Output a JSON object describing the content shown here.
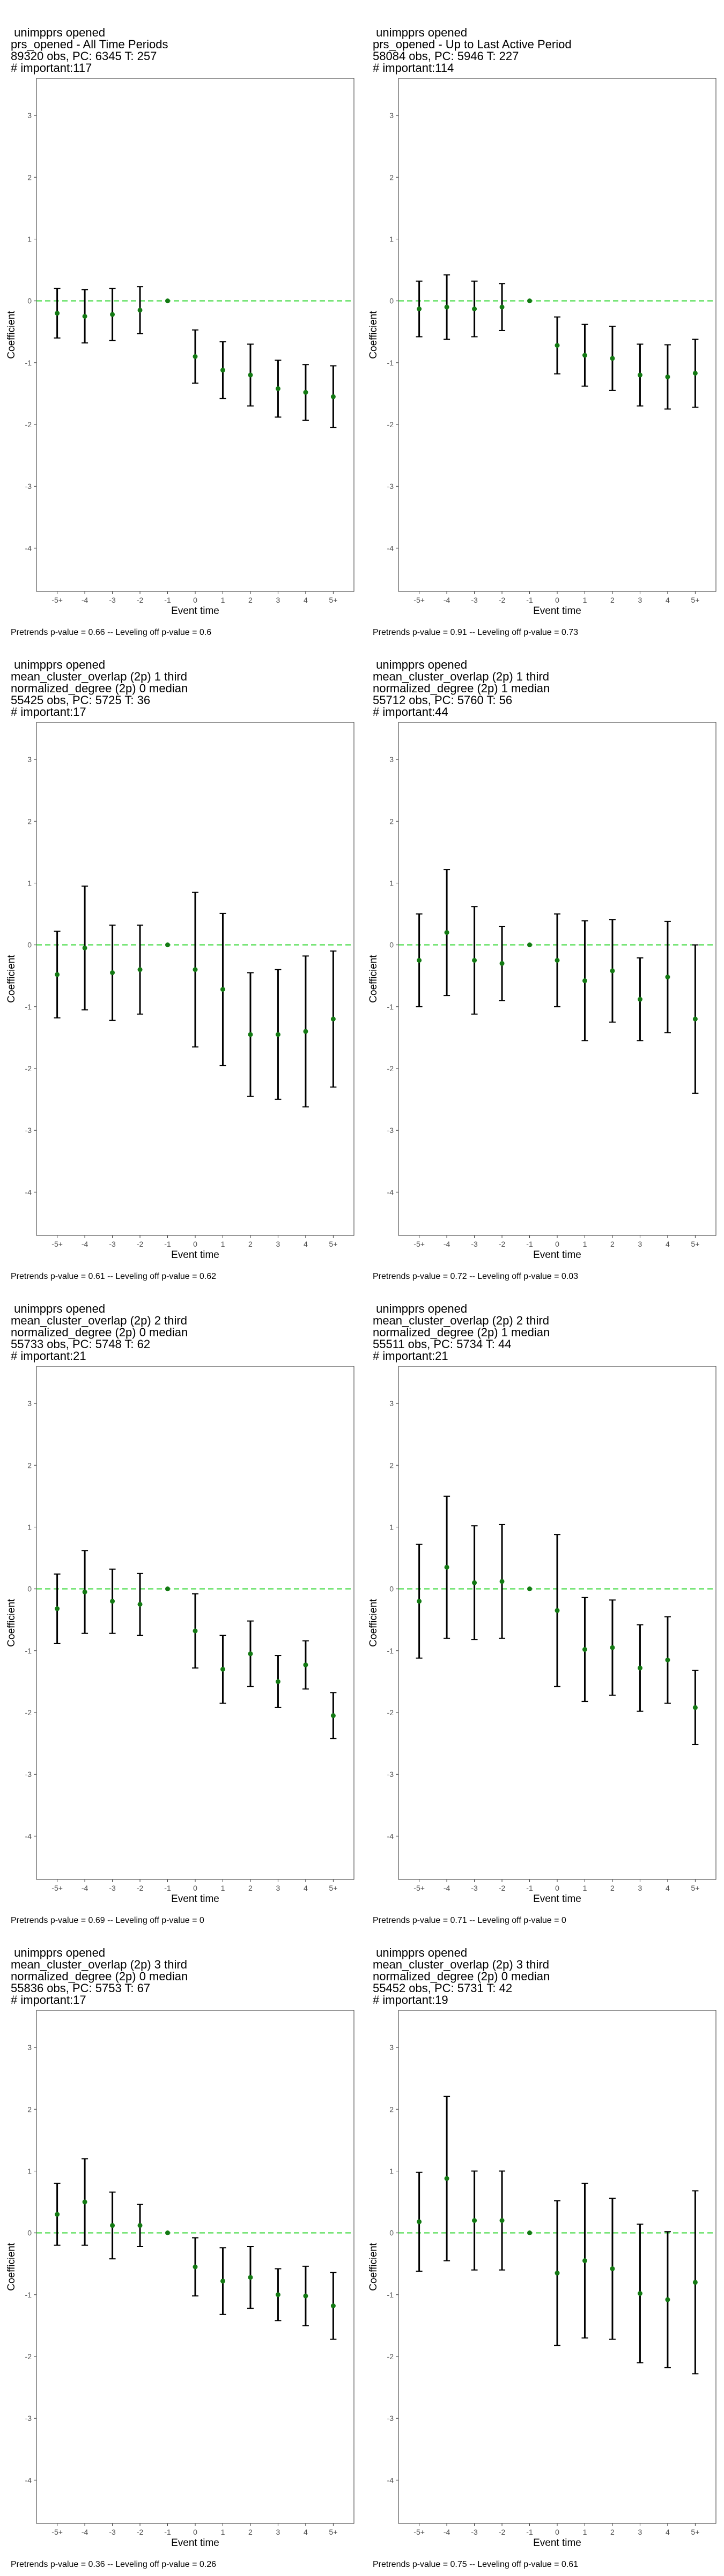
{
  "chart_data": [
    {
      "type": "scatter",
      "title_lines": [
        " unimpprs opened",
        "prs_opened - All Time Periods",
        "89320 obs, PC: 6345 T: 257",
        "# important:117"
      ],
      "caption": "Pretrends p-value = 0.66 -- Leveling off p-value = 0.6",
      "xlabel": "Event time",
      "ylabel": "Coefficient",
      "categories": [
        "-5+",
        "-4",
        "-3",
        "-2",
        "-1",
        "0",
        "1",
        "2",
        "3",
        "4",
        "5+"
      ],
      "yticks": [
        3,
        2,
        1,
        0,
        -1,
        -2,
        -3,
        -4
      ],
      "ylim": [
        -4.7,
        3.6
      ],
      "reference_line": 0,
      "colors": {
        "point": "#137a13",
        "reference": "#33d633",
        "errorbar": "#000000"
      },
      "series": [
        {
          "estimate": [
            -0.2,
            -0.25,
            -0.22,
            -0.15,
            0.0,
            -0.9,
            -1.12,
            -1.2,
            -1.42,
            -1.48,
            -1.55
          ],
          "ci_lower": [
            -0.6,
            -0.68,
            -0.64,
            -0.53,
            0.0,
            -1.33,
            -1.58,
            -1.7,
            -1.88,
            -1.93,
            -2.05
          ],
          "ci_upper": [
            0.2,
            0.18,
            0.2,
            0.23,
            0.0,
            -0.47,
            -0.66,
            -0.7,
            -0.96,
            -1.03,
            -1.05
          ]
        }
      ]
    },
    {
      "type": "scatter",
      "title_lines": [
        " unimpprs opened",
        "prs_opened - Up to Last Active Period",
        "58084 obs, PC: 5946 T: 227",
        "# important:114"
      ],
      "caption": "Pretrends p-value = 0.91 -- Leveling off p-value = 0.73",
      "xlabel": "Event time",
      "ylabel": "Coefficient",
      "categories": [
        "-5+",
        "-4",
        "-3",
        "-2",
        "-1",
        "0",
        "1",
        "2",
        "3",
        "4",
        "5+"
      ],
      "yticks": [
        3,
        2,
        1,
        0,
        -1,
        -2,
        -3,
        -4
      ],
      "ylim": [
        -4.7,
        3.6
      ],
      "reference_line": 0,
      "colors": {
        "point": "#137a13",
        "reference": "#33d633",
        "errorbar": "#000000"
      },
      "series": [
        {
          "estimate": [
            -0.13,
            -0.1,
            -0.13,
            -0.1,
            0.0,
            -0.72,
            -0.88,
            -0.93,
            -1.2,
            -1.23,
            -1.17
          ],
          "ci_lower": [
            -0.58,
            -0.62,
            -0.58,
            -0.48,
            0.0,
            -1.18,
            -1.38,
            -1.45,
            -1.7,
            -1.75,
            -1.72
          ],
          "ci_upper": [
            0.32,
            0.42,
            0.32,
            0.28,
            0.0,
            -0.26,
            -0.38,
            -0.41,
            -0.7,
            -0.71,
            -0.62
          ]
        }
      ]
    },
    {
      "type": "scatter",
      "title_lines": [
        " unimpprs opened",
        "mean_cluster_overlap (2p) 1 third",
        "normalized_degree (2p) 0 median",
        "55425 obs, PC: 5725 T: 36",
        "# important:17"
      ],
      "caption": "Pretrends p-value = 0.61 -- Leveling off p-value = 0.62",
      "xlabel": "Event time",
      "ylabel": "Coefficient",
      "categories": [
        "-5+",
        "-4",
        "-3",
        "-2",
        "-1",
        "0",
        "1",
        "2",
        "3",
        "4",
        "5+"
      ],
      "yticks": [
        3,
        2,
        1,
        0,
        -1,
        -2,
        -3,
        -4
      ],
      "ylim": [
        -4.7,
        3.6
      ],
      "reference_line": 0,
      "colors": {
        "point": "#137a13",
        "reference": "#33d633",
        "errorbar": "#000000"
      },
      "series": [
        {
          "estimate": [
            -0.48,
            -0.05,
            -0.45,
            -0.4,
            0.0,
            -0.4,
            -0.72,
            -1.45,
            -1.45,
            -1.4,
            -1.2
          ],
          "ci_lower": [
            -1.18,
            -1.05,
            -1.22,
            -1.12,
            0.0,
            -1.65,
            -1.95,
            -2.45,
            -2.5,
            -2.62,
            -2.3
          ],
          "ci_upper": [
            0.22,
            0.95,
            0.32,
            0.32,
            0.0,
            0.85,
            0.51,
            -0.45,
            -0.4,
            -0.18,
            -0.1
          ]
        }
      ]
    },
    {
      "type": "scatter",
      "title_lines": [
        " unimpprs opened",
        "mean_cluster_overlap (2p) 1 third",
        "normalized_degree (2p) 1 median",
        "55712 obs, PC: 5760 T: 56",
        "# important:44"
      ],
      "caption": "Pretrends p-value = 0.72 -- Leveling off p-value = 0.03",
      "xlabel": "Event time",
      "ylabel": "Coefficient",
      "categories": [
        "-5+",
        "-4",
        "-3",
        "-2",
        "-1",
        "0",
        "1",
        "2",
        "3",
        "4",
        "5+"
      ],
      "yticks": [
        3,
        2,
        1,
        0,
        -1,
        -2,
        -3,
        -4
      ],
      "ylim": [
        -4.7,
        3.6
      ],
      "reference_line": 0,
      "colors": {
        "point": "#137a13",
        "reference": "#33d633",
        "errorbar": "#000000"
      },
      "series": [
        {
          "estimate": [
            -0.25,
            0.2,
            -0.25,
            -0.3,
            0.0,
            -0.25,
            -0.58,
            -0.42,
            -0.88,
            -0.52,
            -1.2
          ],
          "ci_lower": [
            -1.0,
            -0.82,
            -1.12,
            -0.9,
            0.0,
            -1.0,
            -1.55,
            -1.25,
            -1.55,
            -1.42,
            -2.4
          ],
          "ci_upper": [
            0.5,
            1.22,
            0.62,
            0.3,
            0.0,
            0.5,
            0.39,
            0.41,
            -0.21,
            0.38,
            0.0
          ]
        }
      ]
    },
    {
      "type": "scatter",
      "title_lines": [
        " unimpprs opened",
        "mean_cluster_overlap (2p) 2 third",
        "normalized_degree (2p) 0 median",
        "55733 obs, PC: 5748 T: 62",
        "# important:21"
      ],
      "caption": "Pretrends p-value = 0.69 -- Leveling off p-value = 0",
      "xlabel": "Event time",
      "ylabel": "Coefficient",
      "categories": [
        "-5+",
        "-4",
        "-3",
        "-2",
        "-1",
        "0",
        "1",
        "2",
        "3",
        "4",
        "5+"
      ],
      "yticks": [
        3,
        2,
        1,
        0,
        -1,
        -2,
        -3,
        -4
      ],
      "ylim": [
        -4.7,
        3.6
      ],
      "reference_line": 0,
      "colors": {
        "point": "#137a13",
        "reference": "#33d633",
        "errorbar": "#000000"
      },
      "series": [
        {
          "estimate": [
            -0.32,
            -0.05,
            -0.2,
            -0.25,
            0.0,
            -0.68,
            -1.3,
            -1.05,
            -1.5,
            -1.23,
            -2.05
          ],
          "ci_lower": [
            -0.88,
            -0.72,
            -0.72,
            -0.75,
            0.0,
            -1.28,
            -1.85,
            -1.58,
            -1.92,
            -1.62,
            -2.42
          ],
          "ci_upper": [
            0.24,
            0.62,
            0.32,
            0.25,
            0.0,
            -0.08,
            -0.75,
            -0.52,
            -1.08,
            -0.84,
            -1.68
          ]
        }
      ]
    },
    {
      "type": "scatter",
      "title_lines": [
        " unimpprs opened",
        "mean_cluster_overlap (2p) 2 third",
        "normalized_degree (2p) 1 median",
        "55511 obs, PC: 5734 T: 44",
        "# important:21"
      ],
      "caption": "Pretrends p-value = 0.71 -- Leveling off p-value = 0",
      "xlabel": "Event time",
      "ylabel": "Coefficient",
      "categories": [
        "-5+",
        "-4",
        "-3",
        "-2",
        "-1",
        "0",
        "1",
        "2",
        "3",
        "4",
        "5+"
      ],
      "yticks": [
        3,
        2,
        1,
        0,
        -1,
        -2,
        -3,
        -4
      ],
      "ylim": [
        -4.7,
        3.6
      ],
      "reference_line": 0,
      "colors": {
        "point": "#137a13",
        "reference": "#33d633",
        "errorbar": "#000000"
      },
      "series": [
        {
          "estimate": [
            -0.2,
            0.35,
            0.1,
            0.12,
            0.0,
            -0.35,
            -0.98,
            -0.95,
            -1.28,
            -1.15,
            -1.92
          ],
          "ci_lower": [
            -1.12,
            -0.8,
            -0.82,
            -0.8,
            0.0,
            -1.58,
            -1.82,
            -1.72,
            -1.98,
            -1.85,
            -2.52
          ],
          "ci_upper": [
            0.72,
            1.5,
            1.02,
            1.04,
            0.0,
            0.88,
            -0.14,
            -0.18,
            -0.58,
            -0.45,
            -1.32
          ]
        }
      ]
    },
    {
      "type": "scatter",
      "title_lines": [
        " unimpprs opened",
        "mean_cluster_overlap (2p) 3 third",
        "normalized_degree (2p) 0 median",
        "55836 obs, PC: 5753 T: 67",
        "# important:17"
      ],
      "caption": "Pretrends p-value = 0.36 -- Leveling off p-value = 0.26",
      "xlabel": "Event time",
      "ylabel": "Coefficient",
      "categories": [
        "-5+",
        "-4",
        "-3",
        "-2",
        "-1",
        "0",
        "1",
        "2",
        "3",
        "4",
        "5+"
      ],
      "yticks": [
        3,
        2,
        1,
        0,
        -1,
        -2,
        -3,
        -4
      ],
      "ylim": [
        -4.7,
        3.6
      ],
      "reference_line": 0,
      "colors": {
        "point": "#137a13",
        "reference": "#33d633",
        "errorbar": "#000000"
      },
      "series": [
        {
          "estimate": [
            0.3,
            0.5,
            0.12,
            0.12,
            0.0,
            -0.55,
            -0.78,
            -0.72,
            -1.0,
            -1.02,
            -1.18
          ],
          "ci_lower": [
            -0.2,
            -0.2,
            -0.42,
            -0.22,
            0.0,
            -1.02,
            -1.32,
            -1.22,
            -1.42,
            -1.5,
            -1.72
          ],
          "ci_upper": [
            0.8,
            1.2,
            0.66,
            0.46,
            0.0,
            -0.08,
            -0.24,
            -0.22,
            -0.58,
            -0.54,
            -0.64
          ]
        }
      ]
    },
    {
      "type": "scatter",
      "title_lines": [
        " unimpprs opened",
        "mean_cluster_overlap (2p) 3 third",
        "normalized_degree (2p) 0 median",
        "55452 obs, PC: 5731 T: 42",
        "# important:19"
      ],
      "caption": "Pretrends p-value = 0.75 -- Leveling off p-value = 0.61",
      "xlabel": "Event time",
      "ylabel": "Coefficient",
      "categories": [
        "-5+",
        "-4",
        "-3",
        "-2",
        "-1",
        "0",
        "1",
        "2",
        "3",
        "4",
        "5+"
      ],
      "yticks": [
        3,
        2,
        1,
        0,
        -1,
        -2,
        -3,
        -4
      ],
      "ylim": [
        -4.7,
        3.6
      ],
      "reference_line": 0,
      "colors": {
        "point": "#137a13",
        "reference": "#33d633",
        "errorbar": "#000000"
      },
      "series": [
        {
          "estimate": [
            0.18,
            0.88,
            0.2,
            0.2,
            0.0,
            -0.65,
            -0.45,
            -0.58,
            -0.98,
            -1.08,
            -0.8
          ],
          "ci_lower": [
            -0.62,
            -0.45,
            -0.6,
            -0.6,
            0.0,
            -1.82,
            -1.7,
            -1.72,
            -2.1,
            -2.18,
            -2.28
          ],
          "ci_upper": [
            0.98,
            2.21,
            1.0,
            1.0,
            0.0,
            0.52,
            0.8,
            0.56,
            0.14,
            0.02,
            0.68
          ]
        }
      ]
    }
  ]
}
